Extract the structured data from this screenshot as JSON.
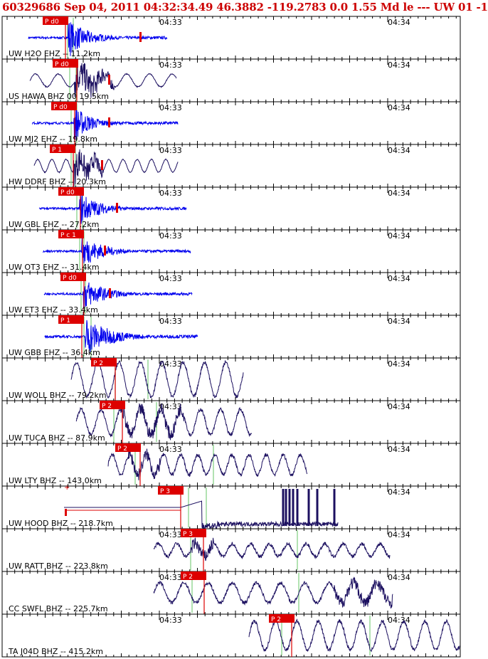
{
  "header": {
    "text": "60329686 Sep 04, 2011 04:32:34.49   46.3882 -119.2783  0.0 1.55 Md le --- UW 01  -1"
  },
  "chart_data": {
    "type": "waveform",
    "time_labels": [
      "04:33",
      "04:34"
    ],
    "colors": {
      "blue_trace": "#0000ee",
      "dark_trace": "#1c1060",
      "pick": "#dd0000",
      "theoretical_line": "#7fcf7f",
      "frame": "#000000"
    },
    "traces": [
      {
        "label": "UW H2O EHZ -- 11.2km",
        "color": "blue_trace",
        "pick": "P d0"
      },
      {
        "label": "US HAWA BHZ 00 19.5km",
        "color": "dark_trace",
        "pick": "P d0"
      },
      {
        "label": "UW MJ2 EHZ -- 19.8km",
        "color": "blue_trace",
        "pick": "P d0"
      },
      {
        "label": "HW DDRF BHZ -- 20.3km",
        "color": "dark_trace",
        "pick": "P 1"
      },
      {
        "label": "UW GBL EHZ -- 27.2km",
        "color": "blue_trace",
        "pick": "P d0"
      },
      {
        "label": "UW OT3 EHZ -- 31.4km",
        "color": "blue_trace",
        "pick": "P c 1"
      },
      {
        "label": "UW ET3 EHZ -- 33.4km",
        "color": "blue_trace",
        "pick": "P d0"
      },
      {
        "label": "UW GBB EHZ -- 36.4km",
        "color": "blue_trace",
        "pick": "P 1"
      },
      {
        "label": "UW WOLL BHZ -- 79.2km",
        "color": "dark_trace",
        "pick": "P 2"
      },
      {
        "label": "UW TUCA BHZ -- 87.9km",
        "color": "dark_trace",
        "pick": "P 2"
      },
      {
        "label": "UW LTY BHZ -- 143.0km",
        "color": "dark_trace",
        "pick": "P 2"
      },
      {
        "label": "UW HOOD BHZ -- 218.7km",
        "color": "dark_trace",
        "pick": "P 3"
      },
      {
        "label": "UW RATT BHZ -- 223.8km",
        "color": "dark_trace",
        "pick": "P 3"
      },
      {
        "label": "CC SWFL BHZ -- 225.7km",
        "color": "dark_trace",
        "pick": "P 2"
      },
      {
        "label": "TA J04D BHZ -- 415.2km",
        "color": "dark_trace",
        "pick": "P 2"
      }
    ]
  }
}
